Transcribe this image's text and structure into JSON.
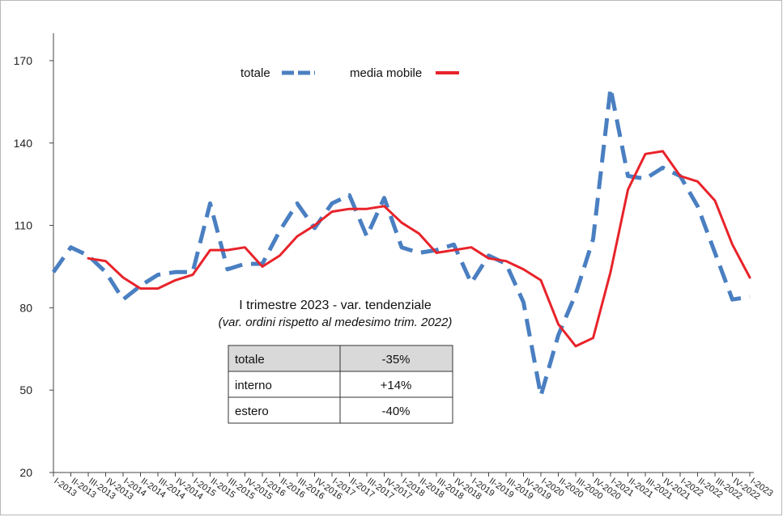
{
  "chart_data": {
    "type": "line",
    "ylim": [
      20,
      180
    ],
    "yticks": [
      20,
      50,
      80,
      110,
      140,
      170
    ],
    "grid": false,
    "legend_position": "top-center",
    "categories": [
      "I-2013",
      "II-2013",
      "III-2013",
      "IV-2013",
      "I-2014",
      "II-2014",
      "III-2014",
      "IV-2014",
      "I-2015",
      "II-2015",
      "III-2015",
      "IV-2015",
      "I-2016",
      "II-2016",
      "III-2016",
      "IV-2016",
      "I-2017",
      "II-2017",
      "III-2017",
      "IV-2017",
      "I-2018",
      "II-2018",
      "III-2018",
      "IV-2018",
      "I-2019",
      "II-2019",
      "III-2019",
      "IV-2019",
      "I-2020",
      "II-2020",
      "III-2020",
      "IV-2020",
      "I-2021",
      "II-2021",
      "III-2021",
      "IV-2021",
      "I-2022",
      "II-2022",
      "III-2022",
      "IV-2022",
      "I-2023"
    ],
    "series": [
      {
        "name": "totale",
        "color": "#4a7fc1",
        "style": "dashed",
        "values": [
          93,
          102,
          99,
          93,
          83,
          88,
          92,
          93,
          93,
          118,
          94,
          96,
          96,
          108,
          118,
          109,
          118,
          121,
          106,
          120,
          102,
          100,
          101,
          103,
          89,
          99,
          96,
          82,
          48,
          70,
          85,
          105,
          160,
          128,
          127,
          131,
          128,
          117,
          100,
          83,
          84
        ]
      },
      {
        "name": "media mobile",
        "color": "#e8232a",
        "style": "solid",
        "values": [
          null,
          null,
          98,
          97,
          91,
          87,
          87,
          90,
          92,
          101,
          101,
          102,
          95,
          99,
          106,
          110,
          115,
          116,
          116,
          117,
          111,
          107,
          100,
          101,
          102,
          98,
          97,
          94,
          90,
          74,
          66,
          69,
          93,
          123,
          136,
          137,
          128,
          126,
          119,
          103,
          91
        ]
      }
    ],
    "annotation": {
      "title": "I trimestre 2023 - var. tendenziale",
      "subtitle": "(var. ordini rispetto al medesimo trim. 2022)"
    },
    "table": {
      "rows": [
        {
          "label": "totale",
          "value": "-35%",
          "highlight": true
        },
        {
          "label": "interno",
          "value": "+14%",
          "highlight": false
        },
        {
          "label": "estero",
          "value": "-40%",
          "highlight": false
        }
      ]
    }
  }
}
